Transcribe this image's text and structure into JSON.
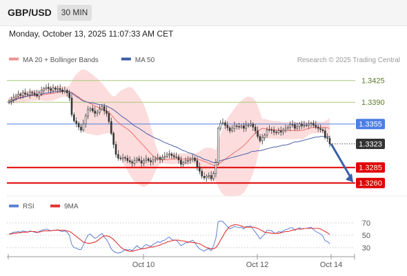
{
  "header": {
    "symbol": "GBP/USD",
    "timeframe": "30 MIN",
    "datetime": "Monday, October 13, 2025 11:07:33 AM CET"
  },
  "colors": {
    "price_line_blue": "#4d7ee6",
    "support_red": "#e00000",
    "resistance_green": "#a8c878",
    "ma20": "#f07070",
    "ma50": "#4a5fa8",
    "bollinger_fill": "#fcd6d6",
    "rsi": "#5b7fd6",
    "rsi_ma": "#e03030",
    "arrow": "#3a60a8"
  },
  "chart_data": [
    {
      "type": "candlestick",
      "legend": [
        {
          "name": "MA 20 + Bollinger Bands",
          "color": "#f09090"
        },
        {
          "name": "MA 50",
          "color": "#3a5ca8"
        }
      ],
      "attribution": "Research © 2025 Trading Central",
      "ylim": [
        1.3248,
        1.3448
      ],
      "x_ticks": [
        "Oct 10",
        "Oct 12",
        "Oct 14"
      ],
      "levels": [
        {
          "value": 1.3425,
          "label": "1.3425",
          "kind": "resistance",
          "color": "#a8c878"
        },
        {
          "value": 1.339,
          "label": "1.3390",
          "kind": "resistance",
          "color": "#a8c878"
        },
        {
          "value": 1.3355,
          "label": "1.3355",
          "kind": "pivot",
          "color": "#4d7ee6"
        },
        {
          "value": 1.3323,
          "label": "1.3323",
          "kind": "last_price",
          "color": "#333333"
        },
        {
          "value": 1.3285,
          "label": "1.3285",
          "kind": "support",
          "color": "#e00000"
        },
        {
          "value": 1.326,
          "label": "1.3260",
          "kind": "support",
          "color": "#e00000"
        }
      ],
      "close": [
        1.3392,
        1.3394,
        1.3397,
        1.34,
        1.3403,
        1.3401,
        1.3405,
        1.3403,
        1.3402,
        1.3406,
        1.3405,
        1.3403,
        1.34,
        1.3405,
        1.3409,
        1.3412,
        1.3414,
        1.3412,
        1.3409,
        1.3413,
        1.3411,
        1.3412,
        1.341,
        1.3407,
        1.3409,
        1.3405,
        1.3397,
        1.337,
        1.336,
        1.3356,
        1.335,
        1.3345,
        1.3355,
        1.3368,
        1.3378,
        1.338,
        1.3376,
        1.3372,
        1.3374,
        1.3379,
        1.3383,
        1.3376,
        1.3372,
        1.3359,
        1.334,
        1.3322,
        1.3306,
        1.33,
        1.3299,
        1.3301,
        1.33,
        1.3296,
        1.3294,
        1.3292,
        1.3296,
        1.3299,
        1.3296,
        1.3292,
        1.3296,
        1.3299,
        1.3296,
        1.3294,
        1.3297,
        1.3299,
        1.3301,
        1.3298,
        1.3301,
        1.3303,
        1.3306,
        1.3307,
        1.3304,
        1.3302,
        1.3302,
        1.3297,
        1.329,
        1.3293,
        1.3296,
        1.3296,
        1.3298,
        1.33,
        1.3296,
        1.3286,
        1.3279,
        1.3271,
        1.3268,
        1.3271,
        1.3272,
        1.3267,
        1.3275,
        1.3293,
        1.3348,
        1.3356,
        1.3357,
        1.3353,
        1.3349,
        1.3344,
        1.3348,
        1.3352,
        1.3351,
        1.335,
        1.3352,
        1.3348,
        1.3353,
        1.3353,
        1.3355,
        1.335,
        1.3344,
        1.3335,
        1.3328,
        1.3333,
        1.3337,
        1.3345,
        1.3346,
        1.3345,
        1.3342,
        1.3341,
        1.3344,
        1.3342,
        1.3345,
        1.3348,
        1.335,
        1.3354,
        1.3354,
        1.3348,
        1.3351,
        1.3355,
        1.3352,
        1.3353,
        1.3353,
        1.3355,
        1.3356,
        1.3353,
        1.335,
        1.3348,
        1.3346,
        1.3344,
        1.3333,
        1.3332,
        1.3323
      ],
      "ma50": [
        1.3389,
        1.3391,
        1.3393,
        1.3394,
        1.3396,
        1.3397,
        1.3398,
        1.3399,
        1.34,
        1.3401,
        1.3402,
        1.3402,
        1.3402,
        1.3402,
        1.3403,
        1.3404,
        1.3405,
        1.3405,
        1.3406,
        1.3407,
        1.3407,
        1.3408,
        1.3408,
        1.3408,
        1.3408,
        1.3408,
        1.3407,
        1.3405,
        1.3402,
        1.3399,
        1.3397,
        1.3394,
        1.3392,
        1.3391,
        1.339,
        1.3389,
        1.3389,
        1.3388,
        1.3387,
        1.3386,
        1.3386,
        1.3385,
        1.3384,
        1.3382,
        1.338,
        1.3378,
        1.3375,
        1.3372,
        1.3369,
        1.3366,
        1.3364,
        1.3361,
        1.3358,
        1.3355,
        1.3352,
        1.335,
        1.3348,
        1.3345,
        1.3343,
        1.334,
        1.3338,
        1.3336,
        1.3334,
        1.3332,
        1.3331,
        1.3329,
        1.3327,
        1.3325,
        1.3324,
        1.3322,
        1.3321,
        1.3319,
        1.3318,
        1.3316,
        1.3314,
        1.3312,
        1.3311,
        1.3309,
        1.3308,
        1.3307,
        1.3305,
        1.3303,
        1.3302,
        1.33,
        1.3298,
        1.3297,
        1.3296,
        1.3294,
        1.3293,
        1.3293,
        1.3294,
        1.3296,
        1.3297,
        1.3298,
        1.3299,
        1.33,
        1.3301,
        1.3302,
        1.3303,
        1.3304,
        1.3305,
        1.3306,
        1.3307,
        1.3308,
        1.331,
        1.3311,
        1.3311,
        1.3312,
        1.3312,
        1.3313,
        1.3314,
        1.3315,
        1.3316,
        1.3317,
        1.3318,
        1.3318,
        1.3319,
        1.332,
        1.3321,
        1.3321,
        1.3322,
        1.3323,
        1.3325,
        1.3326,
        1.3326,
        1.3327,
        1.3328,
        1.3329,
        1.333,
        1.3331,
        1.3332,
        1.3333,
        1.3334,
        1.3334,
        1.3335,
        1.3335,
        1.3335,
        1.3335,
        1.3334
      ],
      "rsi_panel": {
        "legend": [
          {
            "name": "RSI",
            "color": "#5b7fd6"
          },
          {
            "name": "9MA",
            "color": "#e03030"
          }
        ],
        "y_ticks": [
          70,
          50,
          30
        ],
        "ylim": [
          22,
          80
        ],
        "rsi": [
          52,
          53,
          55,
          55,
          56,
          55,
          57,
          56,
          55,
          57,
          56,
          55,
          54,
          56,
          58,
          59,
          60,
          59,
          57,
          58,
          58,
          59,
          57,
          56,
          57,
          55,
          50,
          35,
          30,
          29,
          27,
          27,
          34,
          43,
          50,
          52,
          48,
          45,
          47,
          50,
          53,
          47,
          43,
          36,
          28,
          24,
          22,
          21,
          22,
          24,
          27,
          26,
          27,
          25,
          29,
          33,
          30,
          28,
          32,
          35,
          33,
          32,
          35,
          37,
          40,
          38,
          41,
          42,
          45,
          47,
          43,
          42,
          42,
          38,
          33,
          35,
          38,
          38,
          40,
          42,
          38,
          32,
          28,
          26,
          24,
          27,
          28,
          25,
          33,
          45,
          72,
          73,
          72,
          68,
          64,
          60,
          62,
          64,
          63,
          62,
          63,
          60,
          64,
          64,
          65,
          60,
          55,
          50,
          44,
          48,
          52,
          58,
          58,
          57,
          54,
          53,
          56,
          55,
          57,
          59,
          60,
          62,
          62,
          58,
          60,
          62,
          60,
          61,
          61,
          62,
          63,
          59,
          56,
          54,
          52,
          49,
          41,
          40,
          36
        ],
        "ma9": [
          52,
          52,
          53,
          53,
          54,
          54,
          55,
          55,
          55,
          56,
          56,
          56,
          55,
          55,
          56,
          57,
          57,
          57,
          57,
          58,
          58,
          58,
          58,
          58,
          58,
          57,
          56,
          54,
          51,
          48,
          45,
          42,
          39,
          38,
          37,
          37,
          38,
          39,
          41,
          44,
          47,
          49,
          49,
          48,
          46,
          43,
          39,
          35,
          31,
          28,
          26,
          25,
          24,
          24,
          25,
          26,
          27,
          28,
          28,
          29,
          30,
          31,
          31,
          32,
          33,
          34,
          36,
          37,
          39,
          40,
          41,
          42,
          42,
          42,
          41,
          41,
          40,
          39,
          39,
          38,
          38,
          37,
          36,
          34,
          32,
          30,
          29,
          28,
          28,
          30,
          35,
          42,
          48,
          55,
          60,
          64,
          66,
          67,
          67,
          66,
          65,
          63,
          63,
          63,
          63,
          63,
          62,
          61,
          59,
          57,
          55,
          54,
          54,
          53,
          53,
          53,
          53,
          54,
          55,
          56,
          56,
          57,
          58,
          59,
          60,
          60,
          60,
          61,
          61,
          61,
          61,
          61,
          61,
          61,
          60,
          58,
          56,
          54,
          51
        ]
      }
    }
  ]
}
